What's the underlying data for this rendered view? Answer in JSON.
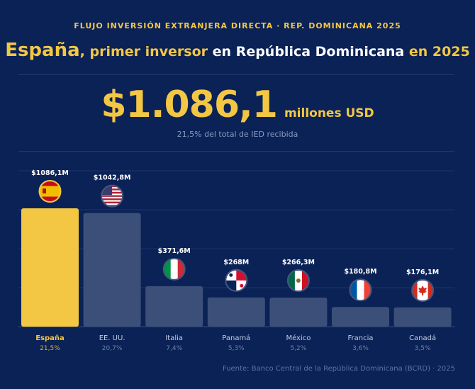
{
  "kicker": "FLUJO INVERSIÓN EXTRANJERA DIRECTA · REP. DOMINICANA 2025",
  "headline": {
    "p1": "España",
    "p2": ", primer inversor ",
    "p3": "en República Dominicana ",
    "p4": "en 2025"
  },
  "highlight": {
    "amount": "$1.086,1",
    "unit": "millones USD",
    "share": "21,5% del total de IED recibida"
  },
  "source": "Fuente: Banco Central de la República Dominicana (BCRD) · 2025",
  "colors": {
    "background": "#0b2256",
    "accent": "#f3c744",
    "bar": "#3c4f79"
  },
  "chart_data": {
    "type": "bar",
    "categories": [
      "España",
      "EE. UU.",
      "Italia",
      "Panamá",
      "México",
      "Francia",
      "Canadá"
    ],
    "values": [
      1086.1,
      1042.8,
      371.6,
      268,
      266.3,
      180.8,
      176.1
    ],
    "value_labels": [
      "$1086,1M",
      "$1042,8M",
      "$371,6M",
      "$268M",
      "$266,3M",
      "$180,8M",
      "$176,1M"
    ],
    "shares": [
      "21,5%",
      "20,7%",
      "7,4%",
      "5,3%",
      "5,2%",
      "3,6%",
      "3,5%"
    ],
    "flags": [
      "spain-flag",
      "usa-flag",
      "italy-flag",
      "panama-flag",
      "mexico-flag",
      "france-flag",
      "canada-flag"
    ],
    "highlighted": "España",
    "grid": true,
    "unit": "millones USD"
  }
}
